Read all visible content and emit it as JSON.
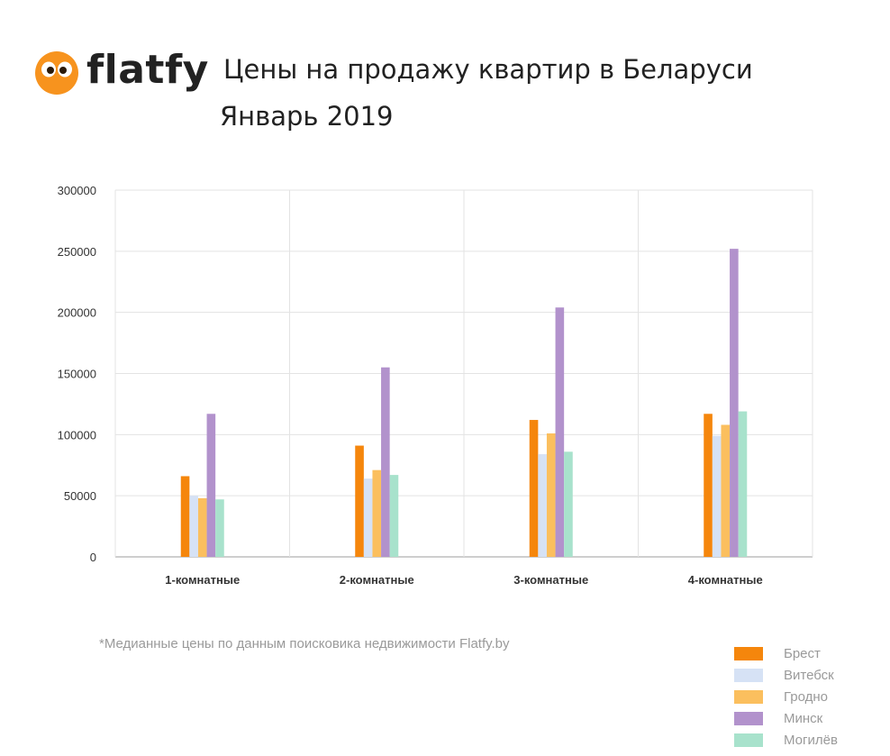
{
  "brand": {
    "logo_text": "flatfy",
    "logo_color": "#f7931e"
  },
  "header": {
    "title": "Цены на продажу квартир в Беларуси",
    "subtitle": "Январь 2019"
  },
  "footnote": "*Медианные цены по данным поисковика недвижимости Flatfy.by",
  "chart_data": {
    "type": "bar",
    "categories": [
      "1-комнатные",
      "2-комнатные",
      "3-комнатные",
      "4-комнатные"
    ],
    "series": [
      {
        "name": "Брест",
        "color": "#f5860c",
        "values": [
          66000,
          91000,
          112000,
          117000
        ]
      },
      {
        "name": "Витебск",
        "color": "#d6e2f5",
        "values": [
          50000,
          64000,
          84000,
          99000
        ]
      },
      {
        "name": "Гродно",
        "color": "#fbbf5e",
        "values": [
          48000,
          71000,
          101000,
          108000
        ]
      },
      {
        "name": "Минск",
        "color": "#b292cc",
        "values": [
          117000,
          155000,
          204000,
          252000
        ]
      },
      {
        "name": "Могилёв",
        "color": "#a8e2cc",
        "values": [
          47000,
          67000,
          86000,
          119000
        ]
      }
    ],
    "ylim": [
      0,
      300000
    ],
    "yticks": [
      0,
      50000,
      100000,
      150000,
      200000,
      250000,
      300000
    ],
    "ytick_labels": [
      "0",
      "50000",
      "100000",
      "150000",
      "200000",
      "250000",
      "300000"
    ],
    "grid": true,
    "legend_position": "bottom-right",
    "xlabel": "",
    "ylabel": ""
  }
}
